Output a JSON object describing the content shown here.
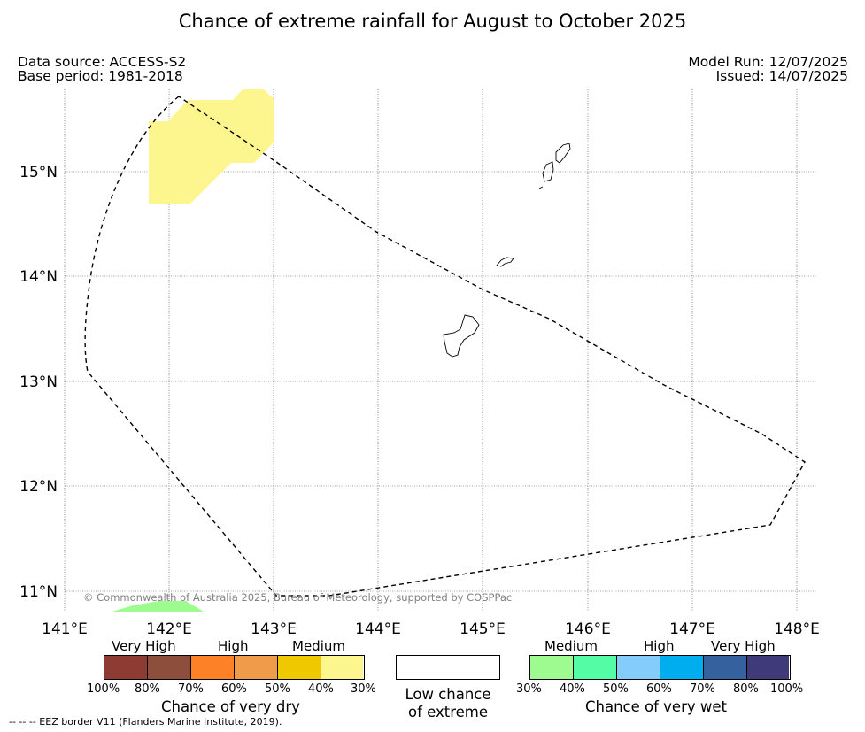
{
  "title": "Chance of extreme rainfall for August to October 2025",
  "data_source": "Data source: ACCESS-S2",
  "base_period": "Base period: 1981-2018",
  "model_run": "Model Run: 12/07/2025",
  "issued": "Issued: 14/07/2025",
  "map": {
    "lon_ticks": [
      "141°E",
      "142°E",
      "143°E",
      "144°E",
      "145°E",
      "146°E",
      "147°E",
      "148°E"
    ],
    "lat_ticks": [
      "15°N",
      "14°N",
      "13°N",
      "12°N",
      "11°N"
    ],
    "copyright": "© Commonwealth of Australia 2025, Bureau of Meteorology, supported by COSPPac",
    "colors": {
      "medium_dry": "#fdf58e",
      "medium_wet": "#9dfb90",
      "eez_line": "#000000"
    }
  },
  "legend_dry": {
    "categories": [
      "Very High",
      "High",
      "Medium"
    ],
    "labels": [
      "100%",
      "80%",
      "70%",
      "60%",
      "50%",
      "40%",
      "30%"
    ],
    "colors": [
      "#8d3b33",
      "#8d4e3b",
      "#fd8127",
      "#ef9b4a",
      "#f0c800",
      "#fdf58e"
    ],
    "title": "Chance of very dry"
  },
  "legend_low": {
    "line1": "Low chance",
    "line2": "of extreme"
  },
  "legend_wet": {
    "categories": [
      "Medium",
      "High",
      "Very High"
    ],
    "labels": [
      "30%",
      "40%",
      "50%",
      "60%",
      "70%",
      "80%",
      "100%"
    ],
    "colors": [
      "#9dfb90",
      "#55fca6",
      "#84ccfc",
      "#00adee",
      "#35629f",
      "#3f3a78"
    ],
    "title": "Chance of very wet"
  },
  "eez_note": "--  --  -- EEZ border V11 (Flanders Marine Institute, 2019)."
}
